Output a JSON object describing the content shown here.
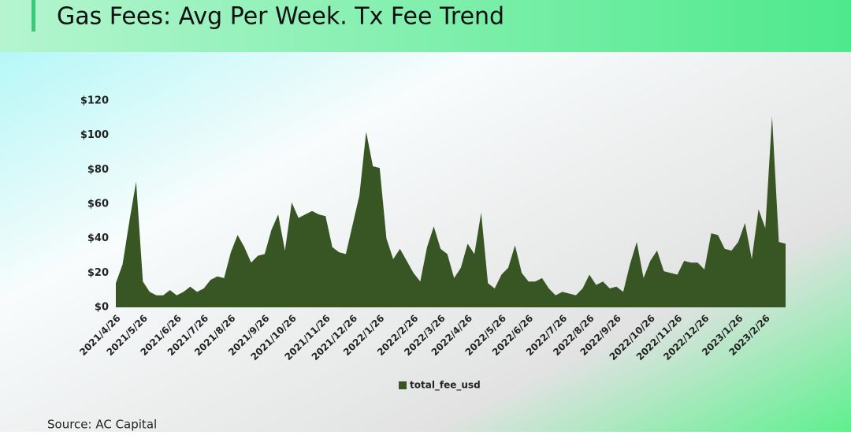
{
  "chart_data": {
    "type": "area",
    "title": "Gas Fees: Avg Per Week. Tx Fee Trend",
    "source": "Source:  AC Capital",
    "categories": [
      "2021/4/26",
      null,
      null,
      null,
      "2021/5/26",
      null,
      null,
      null,
      null,
      "2021/6/26",
      null,
      null,
      null,
      "2021/7/26",
      null,
      null,
      null,
      "2021/8/26",
      null,
      null,
      null,
      null,
      "2021/9/26",
      null,
      null,
      null,
      "2021/10/26",
      null,
      null,
      null,
      null,
      "2021/11/26",
      null,
      null,
      null,
      "2021/12/26",
      null,
      null,
      null,
      "2022/1/26",
      null,
      null,
      null,
      null,
      "2022/2/26",
      null,
      null,
      null,
      "2022/3/26",
      null,
      null,
      null,
      "2022/4/26",
      null,
      null,
      null,
      null,
      "2022/5/26",
      null,
      null,
      null,
      "2022/6/26",
      null,
      null,
      null,
      null,
      "2022/7/26",
      null,
      null,
      null,
      "2022/8/26",
      null,
      null,
      null,
      "2022/9/26",
      null,
      null,
      null,
      null,
      "2022/10/26",
      null,
      null,
      null,
      "2022/11/26",
      null,
      null,
      null,
      "2022/12/26",
      null,
      null,
      null,
      null,
      "2023/1/26",
      null,
      null,
      null,
      "2023/2/26",
      null,
      null,
      null
    ],
    "series": [
      {
        "name": "total_fee_usd",
        "color": "#375623",
        "values": [
          14,
          25,
          50,
          73,
          15,
          9,
          7,
          7,
          10,
          7,
          9,
          12,
          9,
          11,
          16,
          18,
          17,
          32,
          42,
          35,
          26,
          30,
          31,
          45,
          54,
          33,
          61,
          52,
          54,
          56,
          54,
          53,
          35,
          32,
          31,
          48,
          65,
          102,
          82,
          81,
          40,
          28,
          34,
          27,
          20,
          15,
          35,
          47,
          34,
          31,
          17,
          23,
          37,
          31,
          55,
          14,
          11,
          19,
          23,
          36,
          20,
          15,
          15,
          17,
          11,
          7,
          9,
          8,
          7,
          11,
          19,
          13,
          15,
          11,
          12,
          9,
          25,
          38,
          17,
          27,
          33,
          21,
          20,
          19,
          27,
          26,
          26,
          22,
          43,
          42,
          34,
          33,
          38,
          49,
          28,
          57,
          46,
          111,
          38,
          37
        ]
      }
    ],
    "ylim": [
      0,
      120
    ],
    "yticks": [
      {
        "value": 0,
        "label": "$0"
      },
      {
        "value": 20,
        "label": "$20"
      },
      {
        "value": 40,
        "label": "$40"
      },
      {
        "value": 60,
        "label": "$60"
      },
      {
        "value": 80,
        "label": "$80"
      },
      {
        "value": 100,
        "label": "$100"
      },
      {
        "value": 120,
        "label": "$120"
      }
    ],
    "grid": false,
    "legend": "bottom"
  }
}
